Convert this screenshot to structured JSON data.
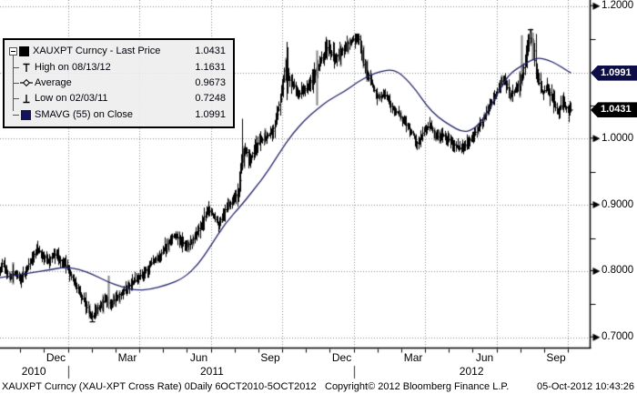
{
  "legend": {
    "rows": [
      {
        "icon": "black-square-swatch",
        "label": "XAUXPT Curncy - Last Price",
        "value": "1.0431"
      },
      {
        "icon": "high-marker",
        "label": "High on 08/13/12",
        "value": "1.1631"
      },
      {
        "icon": "average-marker",
        "label": "Average",
        "value": "0.9673"
      },
      {
        "icon": "low-marker",
        "label": "Low on 02/03/11",
        "value": "0.7248"
      },
      {
        "icon": "navy-square-swatch",
        "label": "SMAVG (55) on Close",
        "value": "1.0991"
      }
    ]
  },
  "y_axis": {
    "labels": [
      {
        "text": "1.2000",
        "price": 1.2
      },
      {
        "text": "1.0000",
        "price": 1.0
      },
      {
        "text": "0.9000",
        "price": 0.9
      },
      {
        "text": "0.8000",
        "price": 0.8
      },
      {
        "text": "0.7000",
        "price": 0.7
      }
    ],
    "minor_tick_prices": [
      1.15,
      1.05,
      0.95,
      0.85,
      0.75
    ],
    "tags": [
      {
        "text": "1.0991",
        "price": 1.0991,
        "bg": "#0d0d47",
        "name": "smavg-price-tag"
      },
      {
        "text": "1.0431",
        "price": 1.0431,
        "bg": "#000000",
        "name": "last-price-tag"
      }
    ]
  },
  "x_axis": {
    "months": [
      {
        "label": "Dec",
        "t": 2.35
      },
      {
        "label": "Mar",
        "t": 5.35
      },
      {
        "label": "Jun",
        "t": 8.35
      },
      {
        "label": "Sep",
        "t": 11.35
      },
      {
        "label": "Dec",
        "t": 14.35
      },
      {
        "label": "Mar",
        "t": 17.35
      },
      {
        "label": "Jun",
        "t": 20.35
      },
      {
        "label": "Sep",
        "t": 23.35
      }
    ],
    "years": [
      {
        "label": "2010",
        "t": 1.42
      },
      {
        "label": "2011",
        "t": 8.9
      },
      {
        "label": "2012",
        "t": 19.8
      }
    ],
    "year_separators_t": [
      2.85,
      14.85
    ],
    "month_tick_first_t": 0.85,
    "month_tick_count": 24
  },
  "footer": {
    "left": "XAUXPT Curncy (XAU-XPT Cross Rate) 0Daily 6OCT2010-5OCT2012",
    "copyright": "Copyright© 2012 Bloomberg Finance L.P.",
    "timestamp": "05-Oct-2012 10:43:26"
  },
  "colors": {
    "bars": "#000000",
    "gray_bars": "#8e8e8e",
    "sma_line": "#22226b",
    "grid": "#8f8f8f",
    "axis": "#000000",
    "legend_bg": "#ececec",
    "tag_sma_bg": "#0d0d47",
    "tag_last_bg": "#000000"
  },
  "chart_data": {
    "type": "bar",
    "subtype": "daily-ohlc-bars-with-moving-average",
    "title": "XAUXPT Curncy - Last Price",
    "x_range_label": "6OCT2010-5OCT2012",
    "ylim": [
      0.7,
      1.2
    ],
    "y_major_step": 0.1,
    "grid": "dotted",
    "legend_position": "top-left",
    "key_points": {
      "last_price": 1.0431,
      "high": {
        "date": "08/13/12",
        "value": 1.1631,
        "t": 22.28
      },
      "average": 0.9673,
      "low": {
        "date": "02/03/11",
        "value": 0.7248,
        "t": 3.88
      },
      "smavg_55_on_close": 1.0991
    },
    "quarter_gridlines_t": [
      2.85,
      5.85,
      8.85,
      11.85,
      14.85,
      17.85,
      20.85,
      23.85
    ],
    "series": [
      {
        "name": "XAUXPT Curncy - Last Price",
        "type": "ohlc_bars",
        "color": "#000000",
        "path_t_months_price": [
          [
            0.0,
            0.8
          ],
          [
            0.15,
            0.812
          ],
          [
            0.4,
            0.789
          ],
          [
            0.65,
            0.797
          ],
          [
            0.85,
            0.787
          ],
          [
            1.1,
            0.8
          ],
          [
            1.35,
            0.818
          ],
          [
            1.6,
            0.833
          ],
          [
            1.85,
            0.824
          ],
          [
            2.05,
            0.816
          ],
          [
            2.3,
            0.826
          ],
          [
            2.55,
            0.817
          ],
          [
            2.85,
            0.805
          ],
          [
            3.1,
            0.787
          ],
          [
            3.4,
            0.765
          ],
          [
            3.65,
            0.748
          ],
          [
            3.88,
            0.73
          ],
          [
            4.05,
            0.74
          ],
          [
            4.25,
            0.749
          ],
          [
            4.45,
            0.757
          ],
          [
            4.65,
            0.75
          ],
          [
            4.9,
            0.758
          ],
          [
            5.2,
            0.77
          ],
          [
            5.5,
            0.779
          ],
          [
            5.85,
            0.79
          ],
          [
            6.15,
            0.801
          ],
          [
            6.45,
            0.814
          ],
          [
            6.75,
            0.823
          ],
          [
            7.05,
            0.841
          ],
          [
            7.35,
            0.856
          ],
          [
            7.6,
            0.846
          ],
          [
            7.9,
            0.837
          ],
          [
            8.2,
            0.851
          ],
          [
            8.5,
            0.872
          ],
          [
            8.75,
            0.893
          ],
          [
            9.0,
            0.884
          ],
          [
            9.2,
            0.869
          ],
          [
            9.5,
            0.893
          ],
          [
            9.8,
            0.906
          ],
          [
            10.05,
            0.92
          ],
          [
            10.18,
            0.968
          ],
          [
            10.35,
            0.985
          ],
          [
            10.55,
            0.968
          ],
          [
            10.75,
            0.988
          ],
          [
            10.95,
            0.996
          ],
          [
            11.2,
            1.002
          ],
          [
            11.5,
            1.012
          ],
          [
            11.72,
            1.045
          ],
          [
            11.88,
            1.072
          ],
          [
            12.02,
            1.112
          ],
          [
            12.18,
            1.09
          ],
          [
            12.4,
            1.079
          ],
          [
            12.6,
            1.067
          ],
          [
            12.8,
            1.072
          ],
          [
            13.0,
            1.082
          ],
          [
            13.25,
            1.096
          ],
          [
            13.5,
            1.118
          ],
          [
            13.8,
            1.138
          ],
          [
            14.05,
            1.121
          ],
          [
            14.3,
            1.129
          ],
          [
            14.6,
            1.143
          ],
          [
            14.9,
            1.15
          ],
          [
            15.1,
            1.154
          ],
          [
            15.3,
            1.112
          ],
          [
            15.6,
            1.085
          ],
          [
            15.9,
            1.062
          ],
          [
            16.2,
            1.066
          ],
          [
            16.5,
            1.046
          ],
          [
            16.8,
            1.036
          ],
          [
            17.1,
            1.02
          ],
          [
            17.35,
            1.008
          ],
          [
            17.55,
            0.992
          ],
          [
            17.85,
            1.012
          ],
          [
            18.1,
            1.02
          ],
          [
            18.35,
            1.001
          ],
          [
            18.6,
            1.006
          ],
          [
            18.9,
            0.998
          ],
          [
            19.2,
            0.988
          ],
          [
            19.45,
            0.983
          ],
          [
            19.7,
            0.996
          ],
          [
            19.95,
            1.006
          ],
          [
            20.2,
            1.022
          ],
          [
            20.5,
            1.041
          ],
          [
            20.8,
            1.062
          ],
          [
            21.0,
            1.08
          ],
          [
            21.2,
            1.092
          ],
          [
            21.45,
            1.065
          ],
          [
            21.7,
            1.076
          ],
          [
            21.95,
            1.09
          ],
          [
            22.1,
            1.12
          ],
          [
            22.25,
            1.152
          ],
          [
            22.4,
            1.148
          ],
          [
            22.55,
            1.1
          ],
          [
            22.8,
            1.068
          ],
          [
            23.0,
            1.076
          ],
          [
            23.2,
            1.062
          ],
          [
            23.45,
            1.04
          ],
          [
            23.65,
            1.052
          ],
          [
            23.8,
            1.047
          ],
          [
            23.97,
            1.0431
          ]
        ],
        "spike_bars": [
          {
            "t": 10.16,
            "lo": 0.952,
            "hi": 1.03
          },
          {
            "t": 12.03,
            "lo": 1.058,
            "hi": 1.146
          },
          {
            "t": 12.09,
            "lo": 1.068,
            "hi": 1.138
          },
          {
            "t": 22.5,
            "lo": 1.094,
            "hi": 1.158
          }
        ],
        "gray_wide_bars": [
          {
            "t": 4.55,
            "lo": 0.745,
            "hi": 0.793
          },
          {
            "t": 13.3,
            "lo": 1.05,
            "hi": 1.133
          },
          {
            "t": 21.9,
            "lo": 1.1,
            "hi": 1.156
          },
          {
            "t": 22.35,
            "lo": 1.118,
            "hi": 1.16
          }
        ]
      },
      {
        "name": "SMAVG (55) on Close",
        "type": "line",
        "color": "#22226b",
        "path_t_months_price": [
          [
            0.0,
            0.79
          ],
          [
            0.7,
            0.794
          ],
          [
            1.4,
            0.798
          ],
          [
            2.1,
            0.802
          ],
          [
            2.7,
            0.806
          ],
          [
            3.3,
            0.803
          ],
          [
            3.9,
            0.795
          ],
          [
            4.5,
            0.784
          ],
          [
            5.1,
            0.776
          ],
          [
            5.7,
            0.771
          ],
          [
            6.3,
            0.772
          ],
          [
            7.0,
            0.779
          ],
          [
            7.7,
            0.789
          ],
          [
            8.3,
            0.809
          ],
          [
            8.85,
            0.838
          ],
          [
            9.45,
            0.872
          ],
          [
            10.2,
            0.902
          ],
          [
            10.7,
            0.925
          ],
          [
            11.2,
            0.948
          ],
          [
            11.85,
            0.985
          ],
          [
            12.3,
            1.008
          ],
          [
            12.8,
            1.028
          ],
          [
            13.3,
            1.044
          ],
          [
            13.8,
            1.058
          ],
          [
            14.5,
            1.072
          ],
          [
            15.0,
            1.085
          ],
          [
            15.5,
            1.095
          ],
          [
            16.0,
            1.102
          ],
          [
            16.5,
            1.104
          ],
          [
            16.9,
            1.096
          ],
          [
            17.5,
            1.072
          ],
          [
            17.9,
            1.05
          ],
          [
            18.4,
            1.032
          ],
          [
            18.9,
            1.02
          ],
          [
            19.4,
            1.01
          ],
          [
            19.8,
            1.012
          ],
          [
            20.2,
            1.025
          ],
          [
            20.6,
            1.048
          ],
          [
            21.0,
            1.075
          ],
          [
            21.4,
            1.098
          ],
          [
            21.9,
            1.11
          ],
          [
            22.3,
            1.118
          ],
          [
            22.6,
            1.122
          ],
          [
            23.0,
            1.119
          ],
          [
            23.4,
            1.112
          ],
          [
            23.7,
            1.105
          ],
          [
            23.97,
            1.0991
          ]
        ]
      }
    ]
  }
}
